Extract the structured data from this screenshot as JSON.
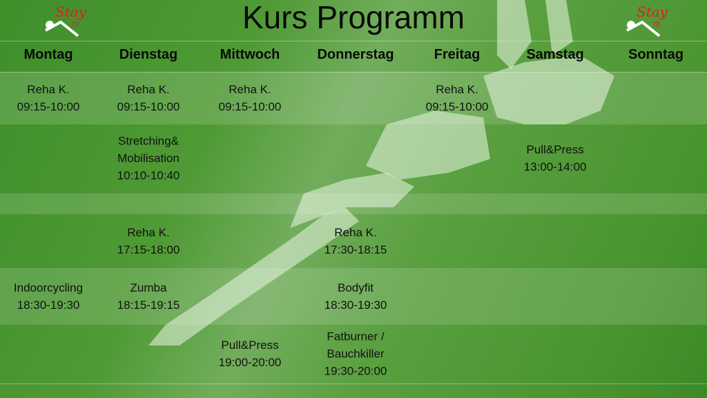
{
  "title": "Kurs Programm",
  "logo": {
    "text": "Stay fit",
    "colors": {
      "red": "#e0201c",
      "white": "#ffffff"
    }
  },
  "colors": {
    "background": "#4f9a35",
    "text": "#111111"
  },
  "days": [
    "Montag",
    "Dienstag",
    "Mittwoch",
    "Donnerstag",
    "Freitag",
    "Samstag",
    "Sonntag"
  ],
  "rows": [
    {
      "cells": [
        [
          "Reha K.",
          "09:15-10:00"
        ],
        [
          "Reha K.",
          "09:15-10:00"
        ],
        [
          "Reha K.",
          "09:15-10:00"
        ],
        null,
        [
          "Reha K.",
          "09:15-10:00"
        ],
        null,
        null
      ]
    },
    {
      "cells": [
        null,
        [
          "Stretching&",
          "Mobilisation",
          "10:10-10:40"
        ],
        null,
        null,
        null,
        [
          "Pull&Press",
          "13:00-14:00"
        ],
        null
      ]
    },
    {
      "cells": [
        null,
        [
          "Reha K.",
          "17:15-18:00"
        ],
        null,
        [
          "Reha K.",
          "17:30-18:15"
        ],
        null,
        null,
        null
      ]
    },
    {
      "cells": [
        [
          "Indoorcycling",
          "18:30-19:30"
        ],
        [
          "Zumba",
          "18:15-19:15"
        ],
        null,
        [
          "Bodyfit",
          "18:30-19:30"
        ],
        null,
        null,
        null
      ]
    },
    {
      "cells": [
        null,
        null,
        [
          "Pull&Press",
          "19:00-20:00"
        ],
        [
          "Fatburner /",
          "Bauchkiller",
          "19:30-20:00"
        ],
        null,
        null,
        null
      ]
    }
  ]
}
